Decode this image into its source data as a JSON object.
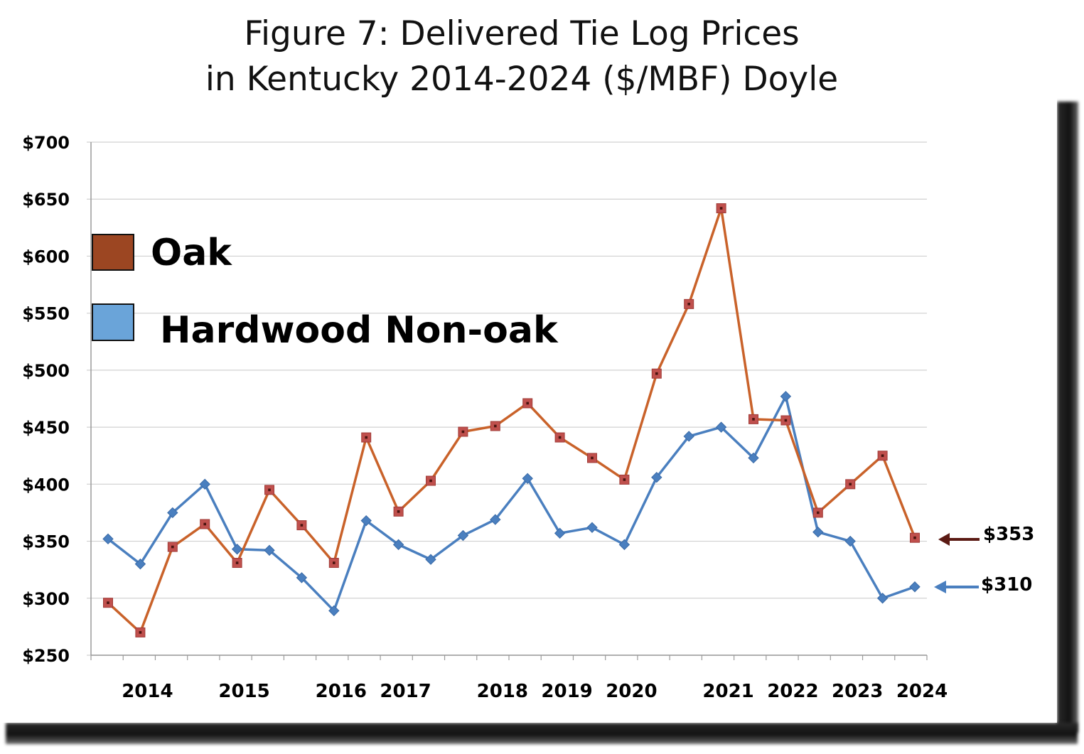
{
  "header": {
    "title_line1": "Figure 7: Delivered Tie Log Prices",
    "title_line2": "in Kentucky 2014-2024 ($/MBF) Doyle"
  },
  "legend": {
    "oak_label": "Oak",
    "nonoak_label": "Hardwood Non-oak"
  },
  "annotations": {
    "oak_last": "$353",
    "nonoak_last": "$310"
  },
  "colors": {
    "oak_line": "#c9622a",
    "oak_marker": "#c0504d",
    "oak_legend": "#9c4622",
    "nonoak_line": "#4a7fbf",
    "nonoak_legend": "#6aa4d9",
    "oak_arrow": "#5b1a14",
    "nonoak_arrow": "#4a7fbf",
    "grid": "#d0d0d0"
  },
  "chart_data": {
    "type": "line",
    "title": "Figure 7: Delivered Tie Log Prices in Kentucky 2014-2024 ($/MBF) Doyle",
    "xlabel": "",
    "ylabel": "",
    "ylim": [
      250,
      700
    ],
    "y_ticks": [
      "$250",
      "$300",
      "$350",
      "$400",
      "$450",
      "$500",
      "$550",
      "$600",
      "$650",
      "$700"
    ],
    "y_tick_values": [
      250,
      300,
      350,
      400,
      450,
      500,
      550,
      600,
      650,
      700
    ],
    "x_tick_labels": [
      "2014",
      "2015",
      "2016",
      "2017",
      "2018",
      "2019",
      "2020",
      "2021",
      "2022",
      "2023",
      "2024"
    ],
    "x_tick_label_period": [
      1,
      4,
      7,
      9,
      12,
      14,
      16,
      19,
      21,
      23,
      25
    ],
    "period_count": 26,
    "grid": true,
    "legend_position": "top-left",
    "series": [
      {
        "name": "Oak",
        "values": [
          296,
          270,
          345,
          365,
          331,
          395,
          364,
          331,
          441,
          376,
          403,
          446,
          451,
          471,
          441,
          423,
          404,
          497,
          558,
          642,
          457,
          456,
          375,
          400,
          425,
          353
        ]
      },
      {
        "name": "Hardwood Non-oak",
        "values": [
          352,
          330,
          375,
          400,
          343,
          342,
          318,
          289,
          368,
          347,
          334,
          355,
          369,
          405,
          357,
          362,
          347,
          406,
          442,
          450,
          423,
          477,
          358,
          350,
          300,
          310
        ]
      }
    ]
  }
}
